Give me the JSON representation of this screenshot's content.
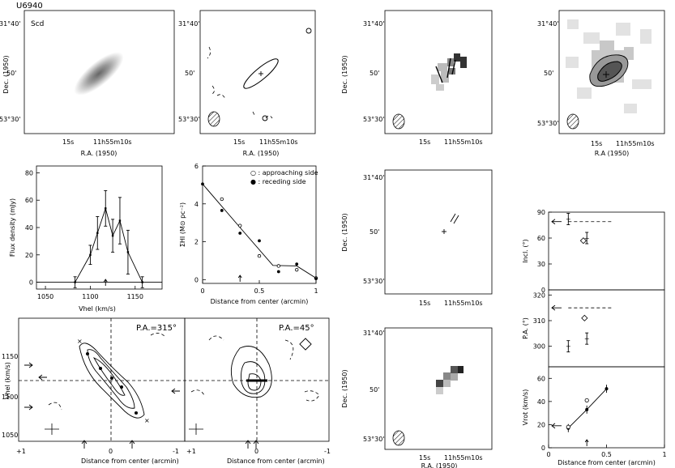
{
  "galaxy": "U6940",
  "morph_type": "Scd",
  "labels": {
    "dec": "Dec. (1950)",
    "ra": "R.A. (1950)",
    "ra_alt": "R.A (1950)",
    "dec_top": "31°40'",
    "dec_mid": "50'",
    "dec_bot": "53°30'",
    "ra_15": "15s",
    "ra_main": "11h55m10s",
    "pv_left": "P.A.=315°",
    "pv_right": "P.A.=45°",
    "pv_ylabel": "Vhel (km/s)",
    "dist_label": "Distance from center (arcmin)",
    "legend_approaching": "○ : approaching side",
    "legend_receding": "● : receding side"
  },
  "chart_data": [
    {
      "type": "line",
      "name": "spectrum",
      "xlabel": "Vhel (km/s)",
      "ylabel": "Flux density (mJy)",
      "xlim": [
        1040,
        1180
      ],
      "ylim": [
        -5,
        85
      ],
      "xticks": [
        1050,
        1100,
        1150
      ],
      "yticks": [
        0,
        20,
        40,
        60,
        80
      ],
      "x": [
        1083,
        1100,
        1108,
        1117,
        1125,
        1133,
        1142,
        1158
      ],
      "y": [
        0,
        20,
        36,
        54,
        34,
        45,
        22,
        0
      ],
      "err": [
        4,
        7,
        12,
        13,
        12,
        17,
        16,
        4
      ]
    },
    {
      "type": "scatter",
      "name": "surface_density",
      "xlabel": "Distance from center (arcmin)",
      "ylabel": "ΣHI (M⊙ pc⁻²)",
      "xlim": [
        0,
        1
      ],
      "ylim": [
        -0.2,
        6
      ],
      "xticks": [
        0,
        0.5,
        1
      ],
      "yticks": [
        0,
        2,
        4,
        6
      ],
      "approaching": [
        [
          0.17,
          4.25
        ],
        [
          0.33,
          2.85
        ],
        [
          0.5,
          1.25
        ],
        [
          0.67,
          0.72
        ],
        [
          0.83,
          0.52
        ],
        [
          1.0,
          0.08
        ]
      ],
      "receding": [
        [
          0.0,
          5.05
        ],
        [
          0.17,
          3.65
        ],
        [
          0.33,
          2.45
        ],
        [
          0.5,
          2.05
        ],
        [
          0.67,
          0.42
        ],
        [
          0.83,
          0.82
        ],
        [
          1.0,
          0.05
        ]
      ],
      "fit": [
        [
          0.0,
          5.05
        ],
        [
          0.33,
          2.75
        ],
        [
          0.62,
          0.75
        ],
        [
          0.83,
          0.72
        ],
        [
          1.0,
          0.08
        ]
      ]
    },
    {
      "type": "scatter",
      "name": "inclination",
      "ylabel": "Incl. (°)",
      "ylim": [
        0,
        90
      ],
      "yticks": [
        0,
        30,
        60,
        90
      ],
      "points": [
        [
          0.17,
          82
        ],
        [
          0.33,
          60
        ]
      ],
      "diamond": [
        [
          0.3,
          57
        ]
      ],
      "arrow_value": 79
    },
    {
      "type": "scatter",
      "name": "position_angle",
      "ylabel": "P.A. (°)",
      "ylim": [
        292,
        322
      ],
      "yticks": [
        300,
        310,
        320
      ],
      "points": [
        [
          0.17,
          300
        ],
        [
          0.33,
          303
        ]
      ],
      "diamond": [
        [
          0.31,
          311
        ]
      ],
      "arrow_value": 315
    },
    {
      "type": "line",
      "name": "rotation_curve",
      "xlabel": "Distance from center (arcmin)",
      "ylabel": "Vrot (km/s)",
      "xlim": [
        0,
        1
      ],
      "ylim": [
        0,
        70
      ],
      "xticks": [
        0,
        0.5,
        1
      ],
      "yticks": [
        0,
        20,
        40,
        60
      ],
      "approaching": [
        [
          0.17,
          18
        ],
        [
          0.33,
          41
        ]
      ],
      "receding": [
        [
          0.17,
          17
        ],
        [
          0.33,
          33
        ],
        [
          0.5,
          51
        ]
      ],
      "arrow_value": 19
    }
  ]
}
